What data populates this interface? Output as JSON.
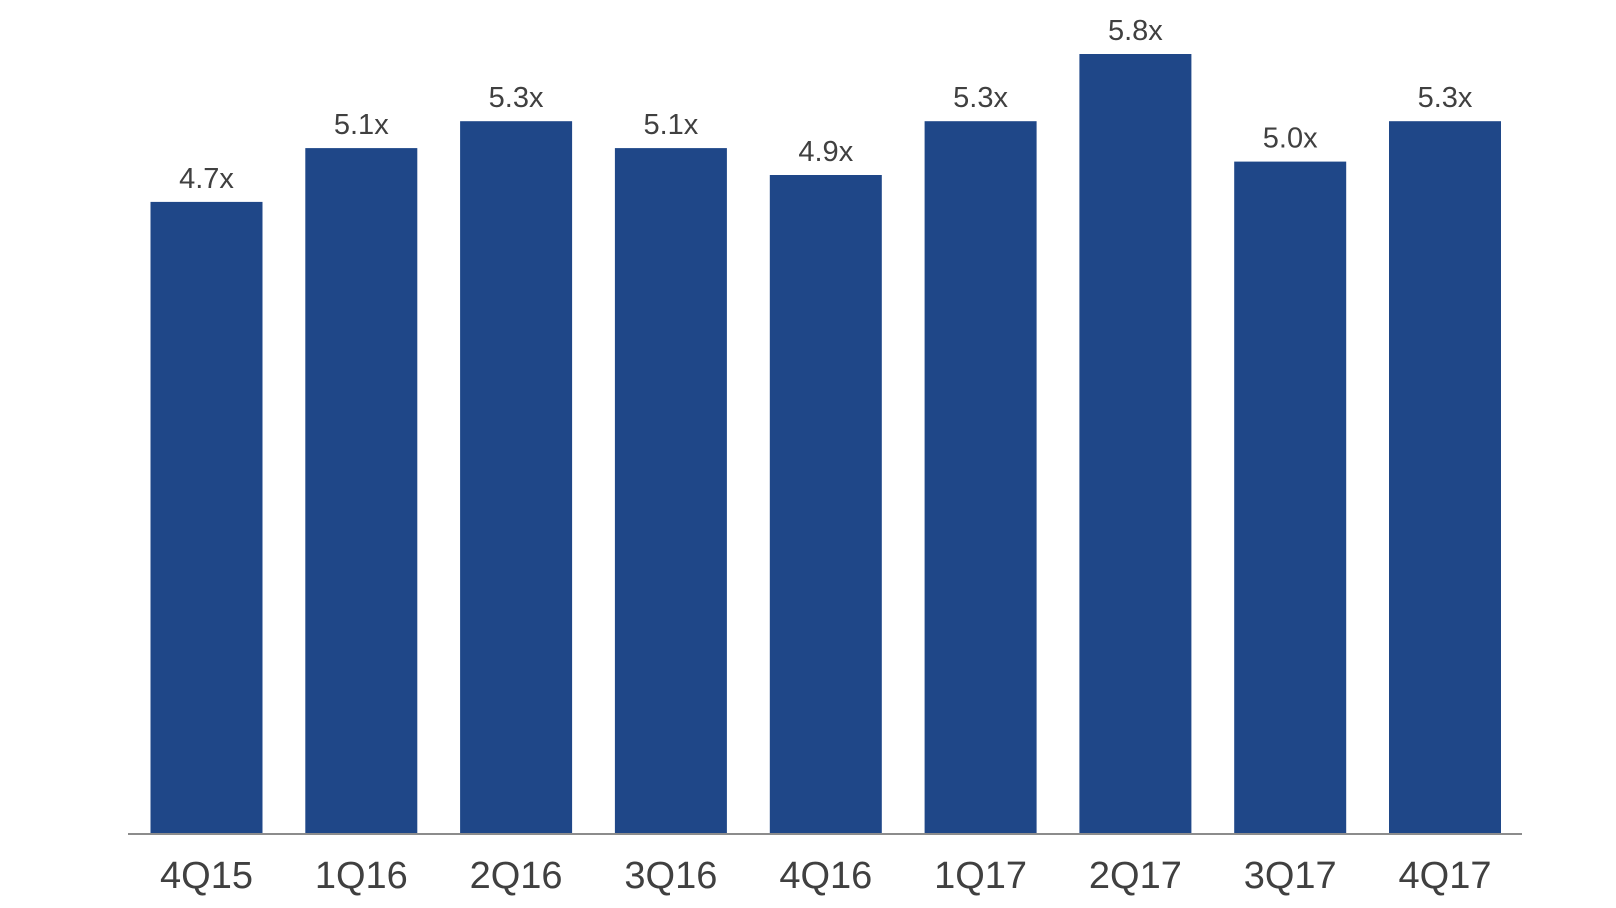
{
  "chart_data": {
    "type": "bar",
    "categories": [
      "4Q15",
      "1Q16",
      "2Q16",
      "3Q16",
      "4Q16",
      "1Q17",
      "2Q17",
      "3Q17",
      "4Q17"
    ],
    "values": [
      4.7,
      5.1,
      5.3,
      5.1,
      4.9,
      5.3,
      5.8,
      5.0,
      5.3
    ],
    "data_labels": [
      "4.7x",
      "5.1x",
      "5.3x",
      "5.1x",
      "4.9x",
      "5.3x",
      "5.8x",
      "5.0x",
      "5.3x"
    ],
    "title": "",
    "xlabel": "",
    "ylabel": "",
    "ylim": [
      0,
      5.8
    ],
    "grid": false,
    "legend": "none",
    "colors": {
      "bar": "#1F4788",
      "axis": "#8C8C8C",
      "text": "#404040"
    }
  }
}
